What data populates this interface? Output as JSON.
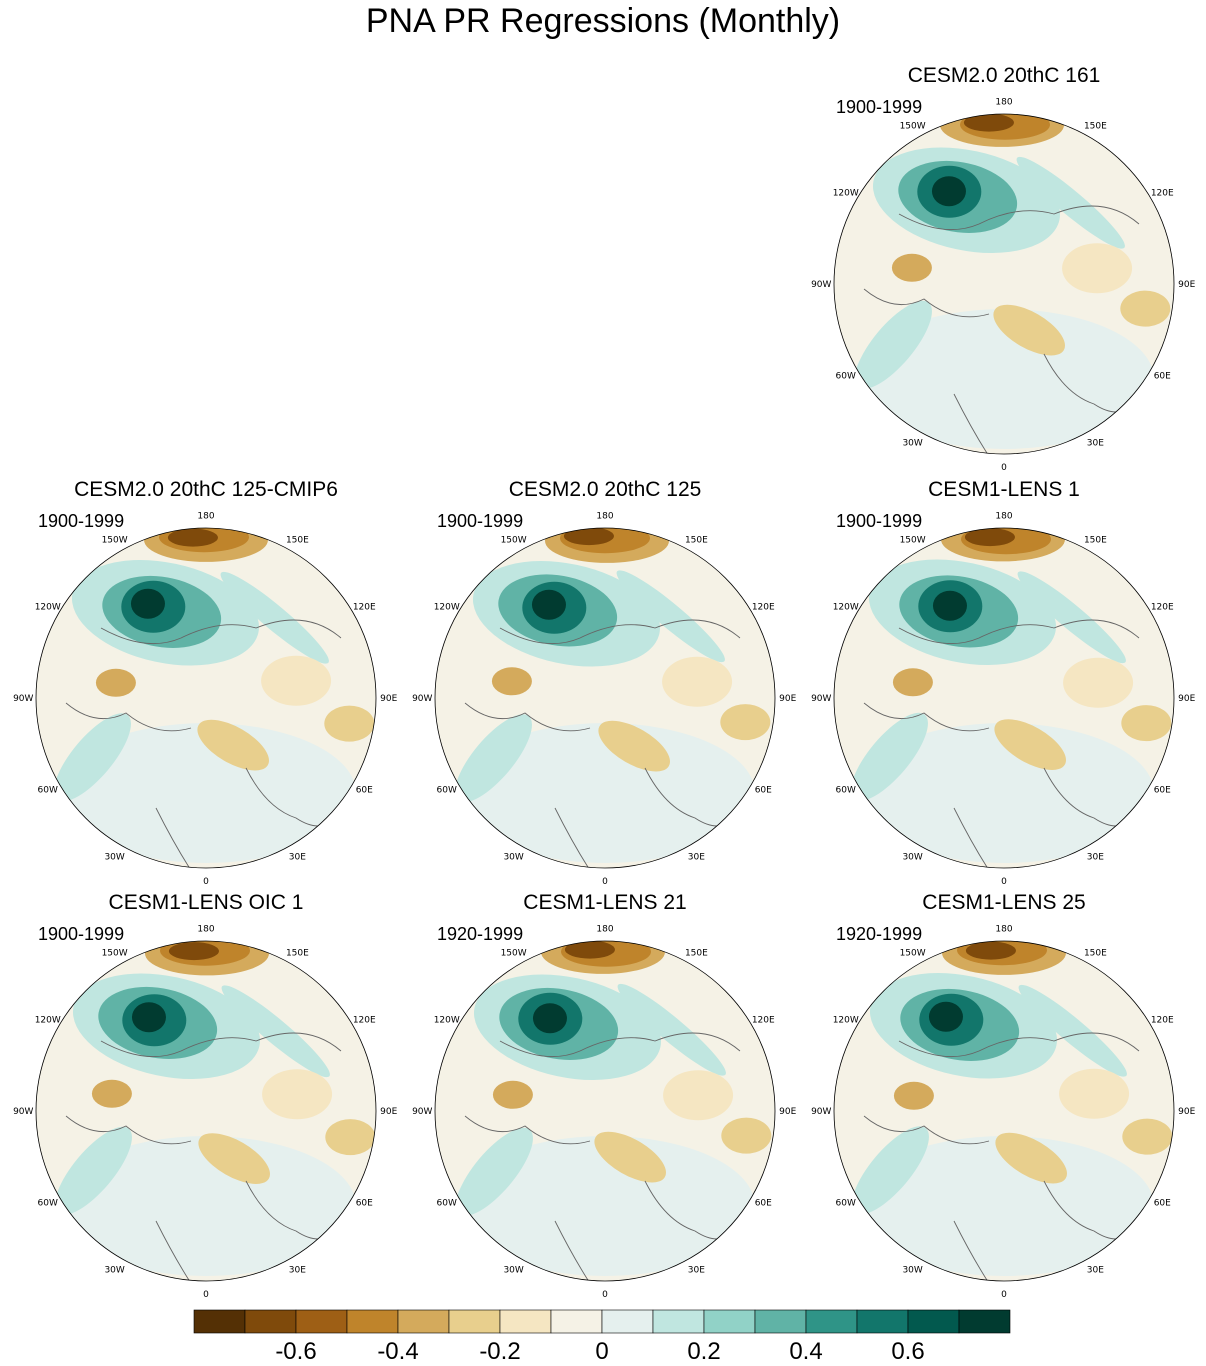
{
  "title": "PNA PR Regressions (Monthly)",
  "chart_data": [
    {
      "type": "heatmap",
      "title": "CESM2.0 20thC 161",
      "period": "1900-1999",
      "projection": "polar stereographic, north pole",
      "pattern": "positive Pacific/Aleutian center, negative subtropical Pacific, weak elsewhere",
      "lon_labels": [
        "180",
        "150E",
        "120E",
        "90E",
        "60E",
        "30E",
        "0",
        "30W",
        "60W",
        "90W",
        "120W",
        "150W"
      ]
    },
    {
      "type": "heatmap",
      "title": "CESM2.0 20thC 125-CMIP6",
      "period": "1900-1999",
      "projection": "polar stereographic, north pole",
      "lon_labels": [
        "180",
        "150E",
        "120E",
        "90E",
        "60E",
        "30E",
        "0",
        "30W",
        "60W",
        "90W",
        "120W",
        "150W"
      ]
    },
    {
      "type": "heatmap",
      "title": "CESM2.0 20thC 125",
      "period": "1900-1999",
      "projection": "polar stereographic, north pole",
      "lon_labels": [
        "180",
        "150E",
        "120E",
        "90E",
        "60E",
        "30E",
        "0",
        "30W",
        "60W",
        "90W",
        "120W",
        "150W"
      ]
    },
    {
      "type": "heatmap",
      "title": "CESM1-LENS 1",
      "period": "1900-1999",
      "projection": "polar stereographic, north pole",
      "lon_labels": [
        "180",
        "150E",
        "120E",
        "90E",
        "60E",
        "30E",
        "0",
        "30W",
        "60W",
        "90W",
        "120W",
        "150W"
      ]
    },
    {
      "type": "heatmap",
      "title": "CESM1-LENS OIC 1",
      "period": "1900-1999",
      "projection": "polar stereographic, north pole",
      "lon_labels": [
        "180",
        "150E",
        "120E",
        "90E",
        "60E",
        "30E",
        "0",
        "30W",
        "60W",
        "90W",
        "120W",
        "150W"
      ]
    },
    {
      "type": "heatmap",
      "title": "CESM1-LENS 21",
      "period": "1920-1999",
      "projection": "polar stereographic, north pole",
      "lon_labels": [
        "180",
        "150E",
        "120E",
        "90E",
        "60E",
        "30E",
        "0",
        "30W",
        "60W",
        "90W",
        "120W",
        "150W"
      ]
    },
    {
      "type": "heatmap",
      "title": "CESM1-LENS 25",
      "period": "1920-1999",
      "projection": "polar stereographic, north pole",
      "lon_labels": [
        "180",
        "150E",
        "120E",
        "90E",
        "60E",
        "30E",
        "0",
        "30W",
        "60W",
        "90W",
        "120W",
        "150W"
      ]
    }
  ],
  "colorbar": {
    "colors": [
      "#543005",
      "#7f4a0b",
      "#9e5f15",
      "#bf842b",
      "#d4aa5c",
      "#e8cf8d",
      "#f5e6c2",
      "#f5f2e6",
      "#e5f0ee",
      "#c0e6e0",
      "#91d2c7",
      "#60b3a6",
      "#2f9487",
      "#12766b",
      "#02594e",
      "#013b30"
    ],
    "tick_labels": [
      "-0.6",
      "-0.4",
      "-0.2",
      "0",
      "0.2",
      "0.4",
      "0.6"
    ],
    "tick_values": [
      -0.6,
      -0.4,
      -0.2,
      0,
      0.2,
      0.4,
      0.6
    ],
    "range": [
      -0.8,
      0.8
    ]
  }
}
